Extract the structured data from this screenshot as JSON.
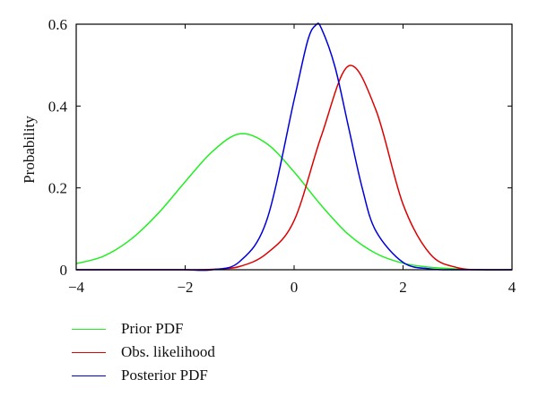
{
  "chart_data": {
    "type": "line",
    "title": "",
    "xlabel": "",
    "ylabel": "Probability",
    "xlim": [
      -4,
      4
    ],
    "ylim": [
      0,
      0.6
    ],
    "xticks": [
      "-4",
      "-2",
      "0",
      "2",
      "4"
    ],
    "yticks": [
      "0",
      "0.2",
      "0.4",
      "0.6"
    ],
    "grid": false,
    "legend_position": "below",
    "series": [
      {
        "name": "Prior PDF",
        "color": "#22ee22",
        "x": [
          -4,
          -3.5,
          -3,
          -2.5,
          -2,
          -1.5,
          -1,
          -0.5,
          0,
          0.5,
          1,
          1.5,
          2,
          2.5,
          3,
          3.5,
          4
        ],
        "values": [
          0.015,
          0.033,
          0.074,
          0.137,
          0.215,
          0.289,
          0.332,
          0.308,
          0.239,
          0.157,
          0.086,
          0.04,
          0.016,
          0.006,
          0.002,
          0.0,
          0.0
        ]
      },
      {
        "name": "Obs. likelihood",
        "color": "#dd0000",
        "x": [
          -4,
          -3.5,
          -3,
          -2.5,
          -2,
          -1.5,
          -1,
          -0.5,
          0,
          0.5,
          1,
          1.5,
          2,
          2.5,
          3,
          3.5,
          4
        ],
        "values": [
          0.0,
          0.0,
          0.0,
          0.0,
          0.0,
          0.001,
          0.008,
          0.04,
          0.12,
          0.327,
          0.498,
          0.391,
          0.16,
          0.038,
          0.005,
          0.0,
          0.0
        ]
      },
      {
        "name": "Posterior PDF",
        "color": "#0000dd",
        "x": [
          -4,
          -3.5,
          -3,
          -2.5,
          -2,
          -1.5,
          -1,
          -0.5,
          0,
          0.25,
          0.4,
          0.5,
          0.75,
          1,
          1.25,
          1.5,
          2,
          2.5,
          3,
          3.5,
          4
        ],
        "values": [
          0.0,
          0.0,
          0.0,
          0.0,
          0.0,
          0.0,
          0.02,
          0.122,
          0.415,
          0.56,
          0.598,
          0.59,
          0.496,
          0.348,
          0.2,
          0.095,
          0.018,
          0.002,
          0.0,
          0.0,
          0.0
        ]
      }
    ]
  }
}
